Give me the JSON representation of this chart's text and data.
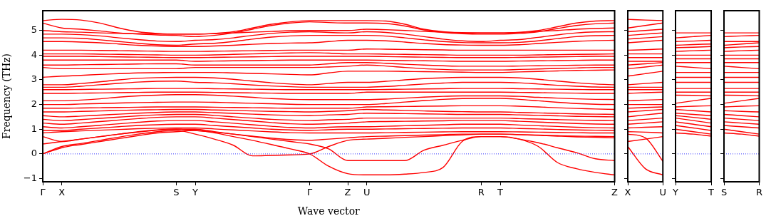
{
  "chart_data": [
    {
      "type": "line",
      "xlabel": "Wave vector",
      "ylabel": "Frequency (THz)",
      "categories": [
        "Γ",
        "X",
        null,
        null,
        null,
        null,
        null,
        "S",
        "Y",
        null,
        null,
        null,
        null,
        null,
        "Γ",
        null,
        "Z",
        "U",
        null,
        null,
        null,
        null,
        null,
        "R",
        "T",
        null,
        null,
        null,
        null,
        null,
        "Z"
      ],
      "ylim": [
        -1.13,
        5.8
      ],
      "yticks": [
        -1,
        0,
        1,
        2,
        3,
        4,
        5
      ],
      "ref_lines": [
        {
          "axis": "y",
          "value": 0,
          "color": "#0000ff",
          "line_style": "dotted"
        }
      ],
      "series": [
        {
          "color": "#ff0000",
          "values": [
            5.4,
            5.45,
            5.42,
            5.3,
            5.1,
            4.95,
            4.88,
            4.85,
            4.85,
            4.88,
            4.95,
            5.1,
            5.25,
            5.35,
            5.4,
            5.4,
            5.4,
            5.4,
            5.38,
            5.25,
            5.05,
            4.95,
            4.9,
            4.9,
            4.9,
            4.92,
            5.0,
            5.15,
            5.3,
            5.38,
            5.4
          ]
        },
        {
          "color": "#ff0000",
          "values": [
            5.3,
            5.1,
            5.05,
            4.98,
            4.9,
            4.85,
            4.82,
            4.8,
            4.75,
            4.8,
            4.9,
            5.05,
            5.2,
            5.3,
            5.35,
            5.32,
            5.3,
            5.3,
            5.28,
            5.18,
            5.02,
            4.92,
            4.87,
            4.85,
            4.85,
            4.88,
            4.95,
            5.08,
            5.2,
            5.27,
            5.3
          ]
        },
        {
          "color": "#ff0000",
          "values": [
            5.0,
            4.95,
            4.93,
            4.9,
            4.88,
            4.87,
            4.86,
            4.85,
            4.85,
            4.87,
            4.9,
            4.93,
            4.96,
            4.99,
            5.0,
            5.0,
            5.0,
            5.05,
            5.03,
            5.0,
            4.96,
            4.93,
            4.91,
            4.9,
            4.9,
            4.92,
            4.96,
            5.0,
            5.05,
            5.08,
            5.1
          ]
        },
        {
          "color": "#ff0000",
          "values": [
            4.85,
            4.85,
            4.83,
            4.78,
            4.7,
            4.63,
            4.57,
            4.55,
            4.6,
            4.63,
            4.7,
            4.8,
            4.88,
            4.93,
            4.95,
            4.92,
            4.9,
            4.95,
            4.92,
            4.85,
            4.75,
            4.65,
            4.58,
            4.55,
            4.6,
            4.63,
            4.72,
            4.82,
            4.9,
            4.94,
            4.95
          ]
        },
        {
          "color": "#ff0000",
          "values": [
            4.7,
            4.7,
            4.68,
            4.62,
            4.55,
            4.48,
            4.42,
            4.4,
            4.45,
            4.48,
            4.55,
            4.65,
            4.73,
            4.78,
            4.8,
            4.8,
            4.8,
            4.8,
            4.77,
            4.7,
            4.62,
            4.55,
            4.51,
            4.5,
            4.5,
            4.52,
            4.58,
            4.67,
            4.75,
            4.79,
            4.8
          ]
        },
        {
          "color": "#ff0000",
          "values": [
            4.55,
            4.55,
            4.53,
            4.5,
            4.45,
            4.4,
            4.37,
            4.35,
            4.35,
            4.37,
            4.4,
            4.44,
            4.47,
            4.49,
            4.5,
            4.55,
            4.6,
            4.6,
            4.58,
            4.53,
            4.47,
            4.43,
            4.41,
            4.4,
            4.4,
            4.42,
            4.47,
            4.52,
            4.56,
            4.59,
            4.6
          ]
        },
        {
          "color": "#ff0000",
          "values": [
            4.2,
            4.2,
            4.2,
            4.19,
            4.18,
            4.17,
            4.16,
            4.15,
            4.15,
            4.16,
            4.17,
            4.18,
            4.19,
            4.2,
            4.2,
            4.2,
            4.2,
            4.25,
            4.24,
            4.23,
            4.22,
            4.21,
            4.2,
            4.2,
            4.2,
            4.2,
            4.2,
            4.2,
            4.2,
            4.2,
            4.2
          ]
        },
        {
          "color": "#ff0000",
          "values": [
            4.05,
            4.05,
            4.05,
            4.04,
            4.03,
            4.02,
            4.01,
            4.0,
            4.0,
            4.01,
            4.03,
            4.05,
            4.07,
            4.09,
            4.1,
            4.08,
            4.05,
            4.05,
            4.04,
            4.03,
            4.02,
            4.01,
            4.0,
            4.0,
            4.0,
            4.0,
            4.01,
            4.02,
            4.03,
            4.04,
            4.05
          ]
        },
        {
          "color": "#ff0000",
          "values": [
            3.95,
            3.95,
            3.95,
            3.94,
            3.93,
            3.92,
            3.91,
            3.9,
            3.9,
            3.91,
            3.92,
            3.93,
            3.94,
            3.95,
            3.95,
            3.95,
            3.95,
            3.95,
            3.94,
            3.93,
            3.92,
            3.91,
            3.9,
            3.9,
            3.9,
            3.91,
            3.92,
            3.93,
            3.94,
            3.95,
            3.95
          ]
        },
        {
          "color": "#ff0000",
          "values": [
            3.8,
            3.8,
            3.8,
            3.8,
            3.8,
            3.8,
            3.8,
            3.8,
            3.75,
            3.76,
            3.77,
            3.78,
            3.79,
            3.8,
            3.8,
            3.8,
            3.8,
            3.8,
            3.79,
            3.78,
            3.77,
            3.76,
            3.75,
            3.75,
            3.75,
            3.76,
            3.77,
            3.78,
            3.79,
            3.8,
            3.8
          ]
        },
        {
          "color": "#ff0000",
          "values": [
            3.6,
            3.6,
            3.61,
            3.62,
            3.63,
            3.64,
            3.65,
            3.65,
            3.6,
            3.6,
            3.6,
            3.6,
            3.6,
            3.6,
            3.6,
            3.65,
            3.7,
            3.7,
            3.67,
            3.63,
            3.6,
            3.57,
            3.55,
            3.55,
            3.55,
            3.56,
            3.57,
            3.58,
            3.59,
            3.6,
            3.6
          ]
        },
        {
          "color": "#ff0000",
          "values": [
            3.5,
            3.45,
            3.45,
            3.45,
            3.45,
            3.45,
            3.45,
            3.45,
            3.5,
            3.5,
            3.5,
            3.5,
            3.5,
            3.5,
            3.5,
            3.52,
            3.55,
            3.6,
            3.56,
            3.5,
            3.45,
            3.42,
            3.4,
            3.4,
            3.4,
            3.42,
            3.44,
            3.46,
            3.48,
            3.5,
            3.5
          ]
        },
        {
          "color": "#ff0000",
          "values": [
            3.1,
            3.15,
            3.18,
            3.22,
            3.25,
            3.28,
            3.29,
            3.3,
            3.3,
            3.3,
            3.28,
            3.26,
            3.24,
            3.22,
            3.2,
            3.28,
            3.35,
            3.35,
            3.35,
            3.34,
            3.33,
            3.32,
            3.31,
            3.3,
            3.3,
            3.32,
            3.34,
            3.36,
            3.38,
            3.39,
            3.4
          ]
        },
        {
          "color": "#ff0000",
          "values": [
            2.8,
            2.8,
            2.85,
            2.92,
            3.0,
            3.06,
            3.09,
            3.1,
            3.1,
            3.08,
            3.02,
            2.95,
            2.88,
            2.83,
            2.8,
            2.85,
            2.9,
            2.9,
            2.94,
            3.0,
            3.05,
            3.08,
            3.1,
            3.1,
            3.1,
            3.08,
            3.02,
            2.95,
            2.88,
            2.83,
            2.8
          ]
        },
        {
          "color": "#ff0000",
          "values": [
            2.7,
            2.7,
            2.74,
            2.8,
            2.86,
            2.91,
            2.94,
            2.95,
            2.9,
            2.88,
            2.84,
            2.79,
            2.75,
            2.72,
            2.7,
            2.7,
            2.7,
            2.7,
            2.73,
            2.78,
            2.83,
            2.87,
            2.9,
            2.9,
            2.9,
            2.88,
            2.83,
            2.78,
            2.74,
            2.71,
            2.7
          ]
        },
        {
          "color": "#ff0000",
          "values": [
            2.6,
            2.6,
            2.61,
            2.62,
            2.63,
            2.64,
            2.65,
            2.65,
            2.65,
            2.64,
            2.63,
            2.62,
            2.61,
            2.6,
            2.6,
            2.6,
            2.6,
            2.6,
            2.61,
            2.62,
            2.63,
            2.64,
            2.65,
            2.65,
            2.65,
            2.64,
            2.63,
            2.62,
            2.61,
            2.6,
            2.6
          ]
        },
        {
          "color": "#ff0000",
          "values": [
            2.45,
            2.45,
            2.46,
            2.47,
            2.48,
            2.49,
            2.5,
            2.5,
            2.5,
            2.49,
            2.48,
            2.47,
            2.46,
            2.45,
            2.45,
            2.45,
            2.45,
            2.5,
            2.5,
            2.5,
            2.5,
            2.5,
            2.5,
            2.5,
            2.5,
            2.49,
            2.48,
            2.47,
            2.46,
            2.45,
            2.45
          ]
        },
        {
          "color": "#ff0000",
          "values": [
            2.15,
            2.15,
            2.18,
            2.23,
            2.3,
            2.35,
            2.38,
            2.4,
            2.4,
            2.38,
            2.34,
            2.29,
            2.24,
            2.21,
            2.2,
            2.2,
            2.2,
            2.2,
            2.22,
            2.26,
            2.3,
            2.33,
            2.35,
            2.35,
            2.35,
            2.33,
            2.29,
            2.26,
            2.23,
            2.21,
            2.2
          ]
        },
        {
          "color": "#ff0000",
          "values": [
            2.0,
            2.0,
            2.02,
            2.04,
            2.06,
            2.08,
            2.09,
            2.1,
            2.1,
            2.09,
            2.07,
            2.05,
            2.03,
            2.01,
            2.0,
            2.0,
            2.0,
            2.0,
            2.04,
            2.1,
            2.16,
            2.21,
            2.24,
            2.25,
            2.25,
            2.21,
            2.15,
            2.09,
            2.04,
            2.01,
            2.0
          ]
        },
        {
          "color": "#ff0000",
          "values": [
            1.85,
            1.85,
            1.86,
            1.87,
            1.88,
            1.89,
            1.9,
            1.9,
            1.9,
            1.89,
            1.88,
            1.87,
            1.86,
            1.85,
            1.85,
            1.85,
            1.85,
            1.9,
            1.91,
            1.92,
            1.93,
            1.94,
            1.95,
            1.95,
            1.95,
            1.93,
            1.9,
            1.87,
            1.84,
            1.82,
            1.8
          ]
        },
        {
          "color": "#ff0000",
          "values": [
            1.7,
            1.7,
            1.72,
            1.74,
            1.76,
            1.78,
            1.79,
            1.8,
            1.8,
            1.78,
            1.76,
            1.74,
            1.72,
            1.71,
            1.7,
            1.72,
            1.75,
            1.8,
            1.78,
            1.76,
            1.74,
            1.72,
            1.71,
            1.7,
            1.7,
            1.68,
            1.66,
            1.64,
            1.62,
            1.61,
            1.6
          ]
        },
        {
          "color": "#ff0000",
          "values": [
            1.55,
            1.5,
            1.53,
            1.57,
            1.61,
            1.65,
            1.68,
            1.7,
            1.7,
            1.67,
            1.64,
            1.61,
            1.58,
            1.56,
            1.55,
            1.58,
            1.6,
            1.65,
            1.64,
            1.63,
            1.62,
            1.61,
            1.6,
            1.6,
            1.6,
            1.58,
            1.56,
            1.54,
            1.52,
            1.51,
            1.5
          ]
        },
        {
          "color": "#ff0000",
          "values": [
            1.4,
            1.35,
            1.39,
            1.44,
            1.49,
            1.54,
            1.58,
            1.6,
            1.6,
            1.56,
            1.5,
            1.45,
            1.4,
            1.37,
            1.35,
            1.38,
            1.4,
            1.45,
            1.45,
            1.45,
            1.45,
            1.45,
            1.45,
            1.45,
            1.45,
            1.43,
            1.41,
            1.39,
            1.37,
            1.36,
            1.35
          ]
        },
        {
          "color": "#ff0000",
          "values": [
            1.25,
            1.2,
            1.25,
            1.31,
            1.37,
            1.43,
            1.48,
            1.5,
            1.5,
            1.45,
            1.39,
            1.33,
            1.27,
            1.22,
            1.2,
            1.22,
            1.25,
            1.3,
            1.31,
            1.32,
            1.33,
            1.34,
            1.35,
            1.35,
            1.35,
            1.32,
            1.29,
            1.26,
            1.23,
            1.21,
            1.2
          ]
        },
        {
          "color": "#ff0000",
          "values": [
            1.1,
            1.05,
            1.1,
            1.16,
            1.22,
            1.28,
            1.33,
            1.35,
            1.35,
            1.3,
            1.24,
            1.18,
            1.12,
            1.07,
            1.05,
            1.08,
            1.1,
            1.1,
            1.12,
            1.14,
            1.16,
            1.18,
            1.2,
            1.2,
            1.2,
            1.17,
            1.14,
            1.11,
            1.08,
            1.06,
            1.05
          ]
        },
        {
          "color": "#ff0000",
          "values": [
            0.95,
            0.95,
            1.0,
            1.05,
            1.1,
            1.15,
            1.18,
            1.2,
            1.2,
            1.15,
            1.1,
            1.05,
            1.0,
            0.97,
            0.95,
            0.98,
            1.0,
            1.0,
            1.01,
            1.02,
            1.03,
            1.04,
            1.05,
            1.05,
            1.05,
            1.03,
            1.01,
            0.99,
            0.97,
            0.96,
            0.95
          ]
        },
        {
          "color": "#ff0000",
          "values": [
            0.85,
            0.9,
            0.93,
            0.96,
            0.99,
            1.02,
            1.04,
            1.05,
            1.05,
            1.01,
            0.97,
            0.93,
            0.89,
            0.86,
            0.85,
            0.85,
            0.85,
            0.85,
            0.86,
            0.87,
            0.88,
            0.89,
            0.9,
            0.9,
            0.9,
            0.89,
            0.88,
            0.87,
            0.86,
            0.85,
            0.85
          ]
        },
        {
          "color": "#ff0000",
          "values": [
            0.7,
            0.5,
            0.6,
            0.7,
            0.8,
            0.88,
            0.96,
            1.0,
            0.95,
            0.88,
            0.8,
            0.72,
            0.64,
            0.58,
            0.55,
            0.6,
            0.65,
            0.7,
            0.72,
            0.74,
            0.76,
            0.78,
            0.8,
            0.8,
            0.8,
            0.78,
            0.76,
            0.74,
            0.72,
            0.71,
            0.7
          ]
        },
        {
          "color": "#ff0000",
          "values": [
            0,
            0.3,
            0.42,
            0.55,
            0.68,
            0.8,
            0.9,
            0.95,
            0.8,
            0.6,
            0.35,
            -0.08,
            -0.06,
            -0.04,
            0,
            0.3,
            0.55,
            0.6,
            0.63,
            0.67,
            0.7,
            0.74,
            0.77,
            0.8,
            0.8,
            0.78,
            0.75,
            0.72,
            0.69,
            0.67,
            0.65
          ]
        },
        {
          "color": "#ff0000",
          "values": [
            0,
            0.25,
            0.38,
            0.5,
            0.62,
            0.74,
            0.85,
            0.9,
            0.95,
            0.85,
            0.7,
            0.55,
            0.38,
            0.2,
            0,
            -0.5,
            -0.8,
            -0.85,
            -0.85,
            -0.82,
            -0.75,
            -0.55,
            0.5,
            0.7,
            0.7,
            0.6,
            0.3,
            -0.35,
            -0.6,
            -0.75,
            -0.85
          ]
        },
        {
          "color": "#ff0000",
          "values": [
            0.4,
            0.5,
            0.6,
            0.7,
            0.8,
            0.9,
            0.97,
            1.0,
            1.0,
            0.9,
            0.8,
            0.7,
            0.6,
            0.5,
            0.4,
            0.2,
            -0.27,
            -0.27,
            -0.27,
            -0.27,
            0.15,
            0.35,
            0.55,
            0.7,
            0.7,
            0.6,
            0.45,
            0.25,
            0.05,
            -0.2,
            -0.27
          ]
        }
      ]
    },
    {
      "type": "line",
      "tick_labels": "x",
      "categories": [
        "X",
        null,
        "U"
      ],
      "ylim": [
        -1.13,
        5.8
      ],
      "yticks": [
        -1,
        0,
        1,
        2,
        3,
        4,
        5
      ],
      "ref_lines": [
        {
          "axis": "y",
          "value": 0,
          "color": "#0000ff",
          "line_style": "dotted"
        }
      ],
      "series": [
        {
          "color": "#ff0000",
          "values": [
            5.45,
            5.42,
            5.4
          ]
        },
        {
          "color": "#ff0000",
          "values": [
            5.1,
            5.2,
            5.3
          ]
        },
        {
          "color": "#ff0000",
          "values": [
            4.95,
            5.0,
            5.05
          ]
        },
        {
          "color": "#ff0000",
          "values": [
            4.8,
            4.85,
            4.9
          ]
        },
        {
          "color": "#ff0000",
          "values": [
            4.65,
            4.7,
            4.75
          ]
        },
        {
          "color": "#ff0000",
          "values": [
            4.5,
            4.55,
            4.6
          ]
        },
        {
          "color": "#ff0000",
          "values": [
            4.2,
            4.22,
            4.25
          ]
        },
        {
          "color": "#ff0000",
          "values": [
            4.05,
            4.05,
            4.05
          ]
        },
        {
          "color": "#ff0000",
          "values": [
            3.9,
            3.9,
            3.9
          ]
        },
        {
          "color": "#ff0000",
          "values": [
            3.75,
            3.75,
            3.75
          ]
        },
        {
          "color": "#ff0000",
          "values": [
            3.6,
            3.65,
            3.7
          ]
        },
        {
          "color": "#ff0000",
          "values": [
            3.45,
            3.52,
            3.6
          ]
        },
        {
          "color": "#ff0000",
          "values": [
            3.15,
            3.25,
            3.35
          ]
        },
        {
          "color": "#ff0000",
          "values": [
            2.8,
            2.85,
            2.9
          ]
        },
        {
          "color": "#ff0000",
          "values": [
            2.7,
            2.7,
            2.7
          ]
        },
        {
          "color": "#ff0000",
          "values": [
            2.6,
            2.6,
            2.6
          ]
        },
        {
          "color": "#ff0000",
          "values": [
            2.45,
            2.48,
            2.5
          ]
        },
        {
          "color": "#ff0000",
          "values": [
            2.15,
            2.18,
            2.2
          ]
        },
        {
          "color": "#ff0000",
          "values": [
            2.0,
            2.0,
            2.0
          ]
        },
        {
          "color": "#ff0000",
          "values": [
            1.85,
            1.88,
            1.9
          ]
        },
        {
          "color": "#ff0000",
          "values": [
            1.7,
            1.75,
            1.8
          ]
        },
        {
          "color": "#ff0000",
          "values": [
            1.5,
            1.58,
            1.65
          ]
        },
        {
          "color": "#ff0000",
          "values": [
            1.35,
            1.4,
            1.45
          ]
        },
        {
          "color": "#ff0000",
          "values": [
            1.2,
            1.25,
            1.3
          ]
        },
        {
          "color": "#ff0000",
          "values": [
            1.05,
            1.08,
            1.1
          ]
        },
        {
          "color": "#ff0000",
          "values": [
            0.9,
            0.88,
            0.85
          ]
        },
        {
          "color": "#ff0000",
          "values": [
            0.5,
            0.6,
            0.7
          ]
        },
        {
          "color": "#ff0000",
          "values": [
            0.3,
            -0.6,
            -0.85
          ]
        },
        {
          "color": "#ff0000",
          "values": [
            0.8,
            0.65,
            -0.3
          ]
        }
      ]
    },
    {
      "type": "line",
      "tick_labels": "x",
      "categories": [
        "Y",
        null,
        "T"
      ],
      "ylim": [
        -1.13,
        5.8
      ],
      "yticks": [
        -1,
        0,
        1,
        2,
        3,
        4,
        5
      ],
      "ref_lines": [
        {
          "axis": "y",
          "value": 0,
          "color": "#0000ff",
          "line_style": "dotted"
        }
      ],
      "series": [
        {
          "color": "#ff0000",
          "values": [
            4.9,
            4.9,
            4.9
          ]
        },
        {
          "color": "#ff0000",
          "values": [
            4.7,
            4.75,
            4.8
          ]
        },
        {
          "color": "#ff0000",
          "values": [
            4.55,
            4.57,
            4.6
          ]
        },
        {
          "color": "#ff0000",
          "values": [
            4.4,
            4.43,
            4.45
          ]
        },
        {
          "color": "#ff0000",
          "values": [
            4.3,
            4.32,
            4.35
          ]
        },
        {
          "color": "#ff0000",
          "values": [
            4.15,
            4.18,
            4.2
          ]
        },
        {
          "color": "#ff0000",
          "values": [
            4.0,
            4.0,
            4.0
          ]
        },
        {
          "color": "#ff0000",
          "values": [
            3.85,
            3.85,
            3.85
          ]
        },
        {
          "color": "#ff0000",
          "values": [
            3.7,
            3.7,
            3.7
          ]
        },
        {
          "color": "#ff0000",
          "values": [
            3.55,
            3.5,
            3.45
          ]
        },
        {
          "color": "#ff0000",
          "values": [
            3.3,
            3.3,
            3.3
          ]
        },
        {
          "color": "#ff0000",
          "values": [
            3.1,
            3.1,
            3.1
          ]
        },
        {
          "color": "#ff0000",
          "values": [
            2.9,
            2.9,
            2.9
          ]
        },
        {
          "color": "#ff0000",
          "values": [
            2.65,
            2.65,
            2.65
          ]
        },
        {
          "color": "#ff0000",
          "values": [
            2.5,
            2.5,
            2.5
          ]
        },
        {
          "color": "#ff0000",
          "values": [
            2.38,
            2.37,
            2.35
          ]
        },
        {
          "color": "#ff0000",
          "values": [
            2.05,
            2.15,
            2.25
          ]
        },
        {
          "color": "#ff0000",
          "values": [
            1.9,
            1.93,
            1.95
          ]
        },
        {
          "color": "#ff0000",
          "values": [
            1.8,
            1.75,
            1.7
          ]
        },
        {
          "color": "#ff0000",
          "values": [
            1.65,
            1.6,
            1.55
          ]
        },
        {
          "color": "#ff0000",
          "values": [
            1.55,
            1.48,
            1.4
          ]
        },
        {
          "color": "#ff0000",
          "values": [
            1.45,
            1.35,
            1.25
          ]
        },
        {
          "color": "#ff0000",
          "values": [
            1.3,
            1.2,
            1.1
          ]
        },
        {
          "color": "#ff0000",
          "values": [
            1.15,
            1.05,
            0.95
          ]
        },
        {
          "color": "#ff0000",
          "values": [
            1.0,
            0.9,
            0.8
          ]
        },
        {
          "color": "#ff0000",
          "values": [
            0.85,
            0.8,
            0.72
          ]
        }
      ]
    },
    {
      "type": "line",
      "tick_labels": "x",
      "categories": [
        "S",
        null,
        "R"
      ],
      "ylim": [
        -1.13,
        5.8
      ],
      "yticks": [
        -1,
        0,
        1,
        2,
        3,
        4,
        5
      ],
      "ref_lines": [
        {
          "axis": "y",
          "value": 0,
          "color": "#0000ff",
          "line_style": "dotted"
        }
      ],
      "series": [
        {
          "color": "#ff0000",
          "values": [
            4.9,
            4.9,
            4.9
          ]
        },
        {
          "color": "#ff0000",
          "values": [
            4.75,
            4.78,
            4.8
          ]
        },
        {
          "color": "#ff0000",
          "values": [
            4.55,
            4.55,
            4.55
          ]
        },
        {
          "color": "#ff0000",
          "values": [
            4.4,
            4.45,
            4.5
          ]
        },
        {
          "color": "#ff0000",
          "values": [
            4.3,
            4.33,
            4.35
          ]
        },
        {
          "color": "#ff0000",
          "values": [
            4.15,
            4.18,
            4.2
          ]
        },
        {
          "color": "#ff0000",
          "values": [
            4.0,
            4.0,
            4.0
          ]
        },
        {
          "color": "#ff0000",
          "values": [
            3.85,
            3.85,
            3.85
          ]
        },
        {
          "color": "#ff0000",
          "values": [
            3.7,
            3.7,
            3.7
          ]
        },
        {
          "color": "#ff0000",
          "values": [
            3.55,
            3.5,
            3.45
          ]
        },
        {
          "color": "#ff0000",
          "values": [
            3.3,
            3.3,
            3.3
          ]
        },
        {
          "color": "#ff0000",
          "values": [
            3.1,
            3.1,
            3.1
          ]
        },
        {
          "color": "#ff0000",
          "values": [
            2.9,
            2.9,
            2.9
          ]
        },
        {
          "color": "#ff0000",
          "values": [
            2.65,
            2.65,
            2.65
          ]
        },
        {
          "color": "#ff0000",
          "values": [
            2.5,
            2.5,
            2.5
          ]
        },
        {
          "color": "#ff0000",
          "values": [
            2.38,
            2.37,
            2.35
          ]
        },
        {
          "color": "#ff0000",
          "values": [
            2.05,
            2.15,
            2.25
          ]
        },
        {
          "color": "#ff0000",
          "values": [
            1.9,
            1.93,
            1.95
          ]
        },
        {
          "color": "#ff0000",
          "values": [
            1.75,
            1.72,
            1.7
          ]
        },
        {
          "color": "#ff0000",
          "values": [
            1.6,
            1.55,
            1.5
          ]
        },
        {
          "color": "#ff0000",
          "values": [
            1.45,
            1.4,
            1.35
          ]
        },
        {
          "color": "#ff0000",
          "values": [
            1.3,
            1.25,
            1.2
          ]
        },
        {
          "color": "#ff0000",
          "values": [
            1.15,
            1.1,
            1.05
          ]
        },
        {
          "color": "#ff0000",
          "values": [
            1.0,
            0.9,
            0.8
          ]
        },
        {
          "color": "#ff0000",
          "values": [
            0.85,
            0.8,
            0.72
          ]
        }
      ]
    }
  ]
}
